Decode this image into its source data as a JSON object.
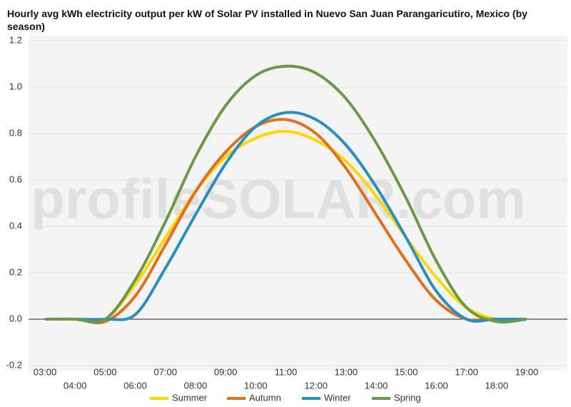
{
  "chart_data": {
    "type": "line",
    "title": "Hourly avg kWh electricity output per kW of Solar PV installed in Nuevo San Juan Parangaricutiro, Mexico (by season)",
    "watermark": "profileSOLAR.com",
    "categories": [
      "03:00",
      "04:00",
      "05:00",
      "06:00",
      "07:00",
      "08:00",
      "09:00",
      "10:00",
      "11:00",
      "12:00",
      "13:00",
      "14:00",
      "15:00",
      "16:00",
      "17:00",
      "18:00",
      "19:00"
    ],
    "series": [
      {
        "name": "Summer",
        "color": "#ffd700",
        "values": [
          0,
          0,
          0,
          0.15,
          0.35,
          0.55,
          0.7,
          0.78,
          0.81,
          0.77,
          0.68,
          0.53,
          0.35,
          0.18,
          0.05,
          0,
          0
        ]
      },
      {
        "name": "Autumn",
        "color": "#e07020",
        "values": [
          0,
          0,
          -0.01,
          0.1,
          0.32,
          0.55,
          0.72,
          0.83,
          0.86,
          0.8,
          0.65,
          0.45,
          0.25,
          0.08,
          0,
          0,
          0
        ]
      },
      {
        "name": "Winter",
        "color": "#2a8fc0",
        "values": [
          0,
          0,
          0,
          0.02,
          0.22,
          0.45,
          0.67,
          0.83,
          0.89,
          0.86,
          0.75,
          0.57,
          0.35,
          0.12,
          0,
          0,
          0
        ]
      },
      {
        "name": "Spring",
        "color": "#6a9a48",
        "values": [
          0,
          0,
          0,
          0.17,
          0.42,
          0.7,
          0.92,
          1.05,
          1.09,
          1.06,
          0.95,
          0.76,
          0.52,
          0.25,
          0.05,
          -0.01,
          0
        ]
      }
    ],
    "ylim": [
      -0.2,
      1.2
    ],
    "yticks": [
      -0.2,
      {
        "value": 0,
        "label": "0.0"
      },
      0.2,
      0.4,
      0.6,
      0.8,
      {
        "value": 1,
        "label": "1.0"
      },
      1.2
    ],
    "grid": true
  }
}
